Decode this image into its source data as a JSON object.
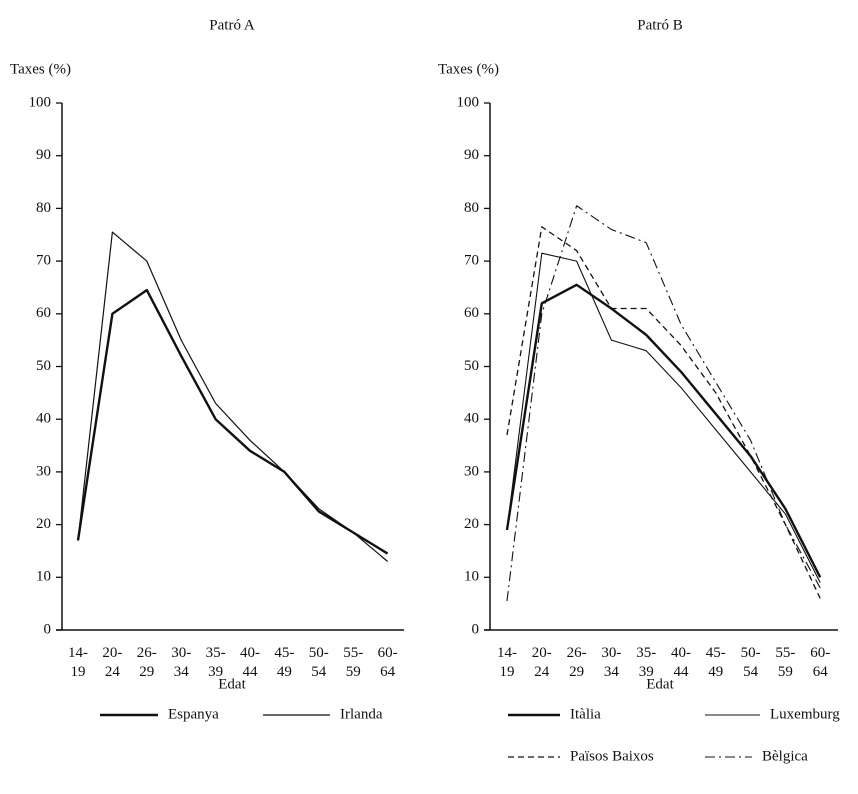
{
  "chart_data": [
    {
      "type": "line",
      "title": "Patró A",
      "y_label": "Taxes (%)",
      "x_label": "Edat",
      "categories": [
        "14-19",
        "20-24",
        "26-29",
        "30-34",
        "35-39",
        "40-44",
        "45-49",
        "50-54",
        "55-59",
        "60-64"
      ],
      "ylim": [
        0,
        100
      ],
      "yticks": [
        0,
        10,
        20,
        30,
        40,
        50,
        60,
        70,
        80,
        90,
        100
      ],
      "grid": false,
      "series": [
        {
          "name": "Espanya",
          "color": "#111111",
          "linestyle": "solid",
          "linewidth": 2.4,
          "values": [
            17,
            60,
            64.5,
            52,
            40,
            34,
            30,
            22.5,
            18.5,
            14.5
          ]
        },
        {
          "name": "Irlanda",
          "color": "#111111",
          "linestyle": "solid",
          "linewidth": 1.2,
          "values": [
            17,
            75.5,
            70,
            55,
            43,
            36,
            30,
            23,
            18.5,
            13
          ]
        }
      ]
    },
    {
      "type": "line",
      "title": "Patró B",
      "y_label": "Taxes (%)",
      "x_label": "Edat",
      "categories": [
        "14-19",
        "20-24",
        "26-29",
        "30-34",
        "35-39",
        "40-44",
        "45-49",
        "50-54",
        "55-59",
        "60-64"
      ],
      "ylim": [
        0,
        100
      ],
      "yticks": [
        0,
        10,
        20,
        30,
        40,
        50,
        60,
        70,
        80,
        90,
        100
      ],
      "grid": false,
      "series": [
        {
          "name": "Itàlia",
          "color": "#111111",
          "linestyle": "solid",
          "linewidth": 2.4,
          "values": [
            19,
            62,
            65.5,
            61,
            56,
            49,
            41,
            33,
            23,
            10
          ]
        },
        {
          "name": "Luxemburg",
          "color": "#111111",
          "linestyle": "solid",
          "linewidth": 1.1,
          "values": [
            19,
            71.5,
            70,
            55,
            53,
            46,
            38,
            30,
            22,
            9
          ]
        },
        {
          "name": "Països Baixos",
          "color": "#111111",
          "linestyle": "dashed",
          "linewidth": 1.3,
          "values": [
            37,
            76.5,
            72,
            61,
            61,
            54,
            45,
            33,
            20,
            6
          ]
        },
        {
          "name": "Bèlgica",
          "color": "#111111",
          "linestyle": "dashdot",
          "linewidth": 1.1,
          "values": [
            5.5,
            60,
            80.5,
            76,
            73.5,
            58,
            47,
            36,
            20,
            8
          ]
        }
      ]
    }
  ]
}
